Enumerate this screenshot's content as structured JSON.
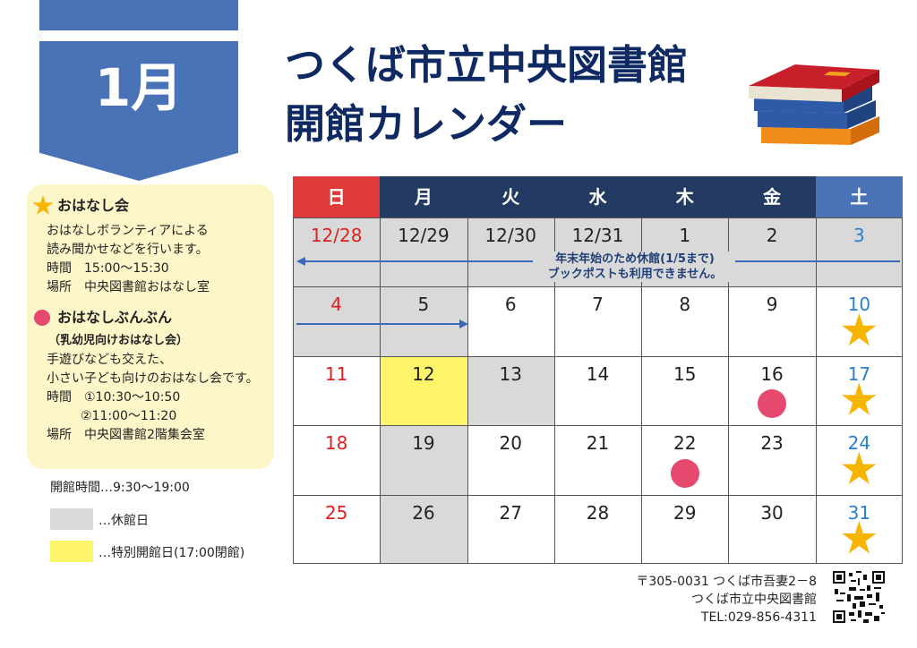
{
  "month_badge": "1月",
  "title_line1": "つくば市立中央図書館",
  "title_line2": "開館カレンダー",
  "info": {
    "story_time": {
      "heading": "おはなし会",
      "lines": [
        "おはなしボランティアによる",
        "読み聞かせなどを行います。",
        "時間　15:00～15:30",
        "場所　中央図書館おはなし室"
      ]
    },
    "bunbun": {
      "heading": "おはなしぶんぶん",
      "subheading": "（乳幼児向けおはなし会）",
      "lines": [
        "手遊びなども交えた、",
        "小さい子ども向けのおはなし会です。",
        "時間　①10:30～10:50",
        "②11:00～11:20",
        "場所　中央図書館2階集会室"
      ]
    }
  },
  "opening_hours": "開館時間…9:30～19:00",
  "legend": {
    "closed": "…休館日",
    "special_open": "…特別開館日(17:00閉館)"
  },
  "weekdays": [
    "日",
    "月",
    "火",
    "水",
    "木",
    "金",
    "土"
  ],
  "weeks": [
    [
      "12/28",
      "12/29",
      "12/30",
      "12/31",
      "1",
      "2",
      "3"
    ],
    [
      "4",
      "5",
      "6",
      "7",
      "8",
      "9",
      "10"
    ],
    [
      "11",
      "12",
      "13",
      "14",
      "15",
      "16",
      "17"
    ],
    [
      "18",
      "19",
      "20",
      "21",
      "22",
      "23",
      "24"
    ],
    [
      "25",
      "26",
      "27",
      "28",
      "29",
      "30",
      "31"
    ]
  ],
  "closed_note": {
    "line1": "年末年始のため休館(1/5まで)",
    "line2": "ブックポストも利用できません。"
  },
  "footer": {
    "address": "〒305-0031 つくば市吾妻2－8",
    "name": "つくば市立中央図書館",
    "tel": "TEL:029-856-4311"
  },
  "colors": {
    "sunday": "#e02020",
    "saturday": "#2a7fcf",
    "header_weekday": "#233b63",
    "header_sunday": "#e03b3b",
    "header_saturday": "#4a72b6",
    "closed": "#d9d9d9",
    "special_open": "#fff56b",
    "star": "#f6b500",
    "dot": "#e6496e"
  }
}
